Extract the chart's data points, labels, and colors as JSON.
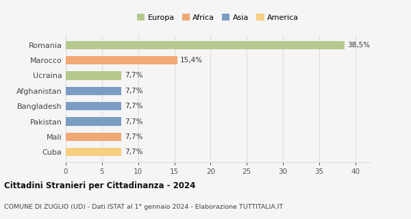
{
  "categories": [
    "Romania",
    "Marocco",
    "Ucraina",
    "Afghanistan",
    "Bangladesh",
    "Pakistan",
    "Mali",
    "Cuba"
  ],
  "values": [
    38.5,
    15.4,
    7.7,
    7.7,
    7.7,
    7.7,
    7.7,
    7.7
  ],
  "labels": [
    "38,5%",
    "15,4%",
    "7,7%",
    "7,7%",
    "7,7%",
    "7,7%",
    "7,7%",
    "7,7%"
  ],
  "colors": [
    "#b5c98e",
    "#f0a875",
    "#b5c98e",
    "#7b9dc4",
    "#7b9dc4",
    "#7b9dc4",
    "#f0a875",
    "#f5d080"
  ],
  "legend_labels": [
    "Europa",
    "Africa",
    "Asia",
    "America"
  ],
  "legend_colors": [
    "#b5c98e",
    "#f0a875",
    "#7b9dc4",
    "#f5d080"
  ],
  "title": "Cittadini Stranieri per Cittadinanza - 2024",
  "subtitle": "COMUNE DI ZUGLIO (UD) - Dati ISTAT al 1° gennaio 2024 - Elaborazione TUTTITALIA.IT",
  "xlim": [
    0,
    42
  ],
  "xticks": [
    0,
    5,
    10,
    15,
    20,
    25,
    30,
    35,
    40
  ],
  "background_color": "#f5f5f5",
  "grid_color": "#dddddd",
  "bar_height": 0.55
}
